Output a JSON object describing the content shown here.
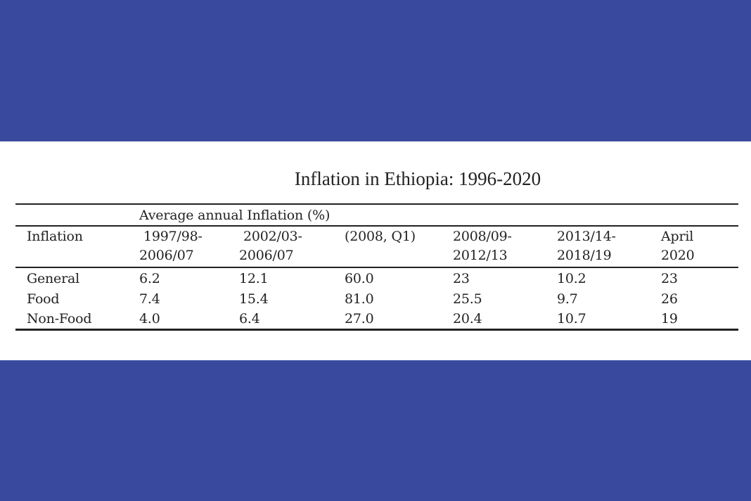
{
  "title": "Inflation in Ethiopia: 1996-2020",
  "table": {
    "group_header": "Average annual Inflation (%)",
    "columns": [
      {
        "line1": "Inflation",
        "line2": ""
      },
      {
        "line1": "1997/98-",
        "line2": "2006/07"
      },
      {
        "line1": "2002/03-",
        "line2": "2006/07"
      },
      {
        "line1": "(2008, Q1)",
        "line2": ""
      },
      {
        "line1": "2008/09-",
        "line2": "2012/13"
      },
      {
        "line1": "2013/14-",
        "line2": "2018/19"
      },
      {
        "line1": "April",
        "line2": "2020"
      }
    ],
    "rows": [
      [
        "General",
        "6.2",
        "12.1",
        "60.0",
        "23",
        "10.2",
        "23"
      ],
      [
        "Food",
        "7.4",
        "15.4",
        "81.0",
        "25.5",
        "9.7",
        "26"
      ],
      [
        "Non-Food",
        "4.0",
        "6.4",
        "27.0",
        "20.4",
        "10.7",
        "19"
      ]
    ]
  },
  "colors": {
    "background_band": "#394a9e",
    "panel": "#ffffff",
    "text": "#222222"
  }
}
